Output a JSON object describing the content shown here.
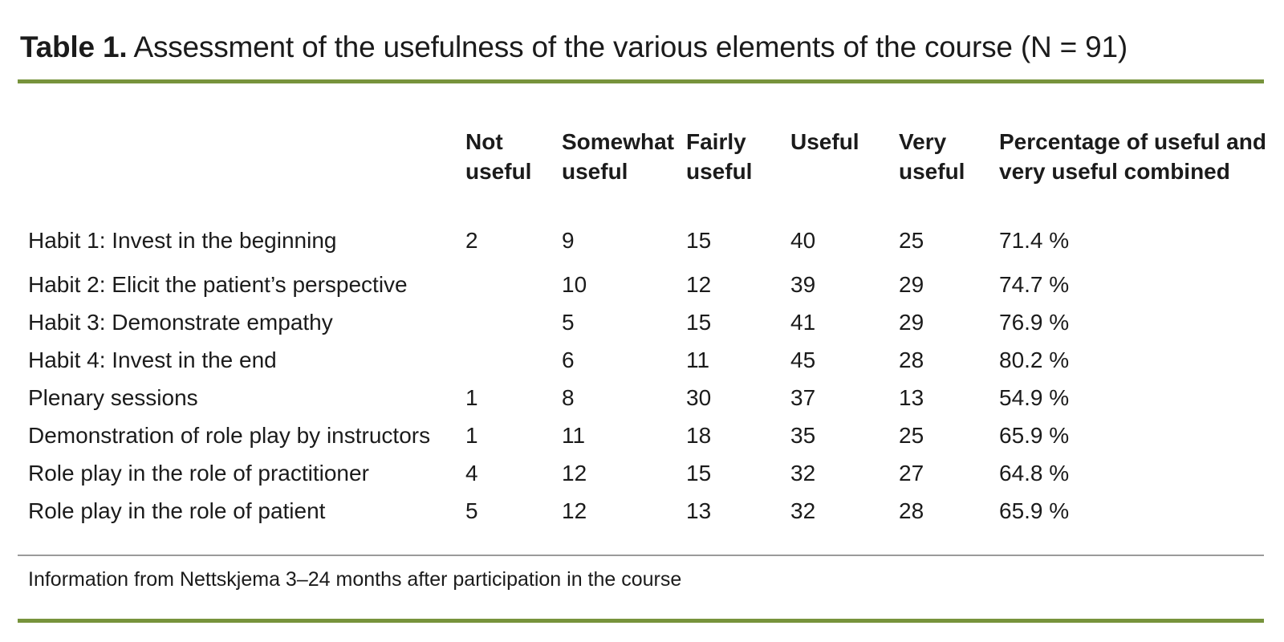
{
  "page": {
    "title_bold": "Table 1.",
    "title_rest": " Assessment of the usefulness of the various elements of the course (N = 91)",
    "footnote": "Information from Nettskjema 3–24 months after participation in the course",
    "accent_green": "#77933c",
    "divider_gray": "#9a9a9a"
  },
  "table": {
    "columns": [
      {
        "l1": "Not",
        "l2": "useful"
      },
      {
        "l1": "Somewhat",
        "l2": "useful"
      },
      {
        "l1": "Fairly",
        "l2": "useful"
      },
      {
        "l1": "Useful",
        "l2": ""
      },
      {
        "l1": "Very",
        "l2": "useful"
      },
      {
        "l1": "Percentage of useful and",
        "l2": "very useful combined"
      }
    ],
    "rows": [
      {
        "label": "Habit 1: Invest in the beginning",
        "values": [
          "2",
          "9",
          "15",
          "40",
          "25",
          "71.4 %"
        ]
      },
      {
        "label": "Habit 2: Elicit the patient’s perspective",
        "values": [
          "",
          "10",
          "12",
          "39",
          "29",
          "74.7 %"
        ]
      },
      {
        "label": "Habit 3: Demonstrate empathy",
        "values": [
          "",
          "5",
          "15",
          "41",
          "29",
          "76.9 %"
        ]
      },
      {
        "label": "Habit 4: Invest in the end",
        "values": [
          "",
          "6",
          "11",
          "45",
          "28",
          "80.2 %"
        ]
      },
      {
        "label": "Plenary sessions",
        "values": [
          "1",
          "8",
          "30",
          "37",
          "13",
          "54.9 %"
        ]
      },
      {
        "label": "Demonstration of role play by instructors",
        "values": [
          "1",
          "11",
          "18",
          "35",
          "25",
          "65.9 %"
        ]
      },
      {
        "label": "Role play in the role of practitioner",
        "values": [
          "4",
          "12",
          "15",
          "32",
          "27",
          "64.8 %"
        ]
      },
      {
        "label": "Role play in the role of patient",
        "values": [
          "5",
          "12",
          "13",
          "32",
          "28",
          "65.9 %"
        ]
      }
    ]
  }
}
